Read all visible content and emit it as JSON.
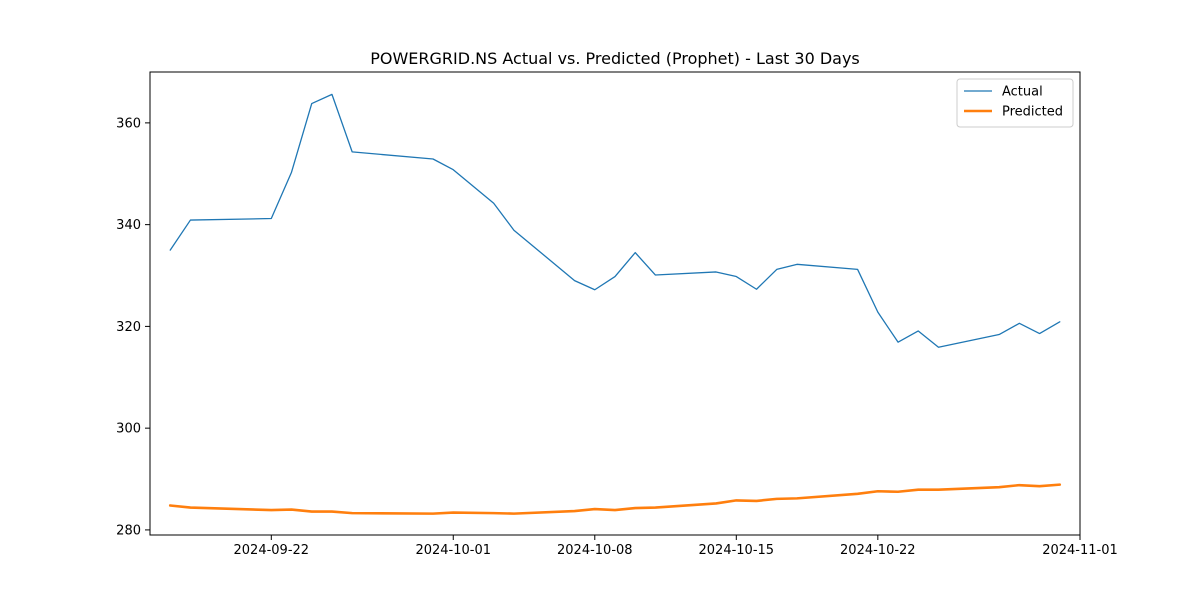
{
  "chart_data": {
    "type": "line",
    "title": "POWERGRID.NS Actual vs. Predicted (Prophet) - Last 30 Days",
    "xlabel": "",
    "ylabel": "",
    "xlim": [
      "2024-09-16",
      "2024-11-01"
    ],
    "ylim": [
      279,
      370
    ],
    "x_ticks": [
      "2024-09-22",
      "2024-10-01",
      "2024-10-08",
      "2024-10-15",
      "2024-10-22",
      "2024-11-01"
    ],
    "y_ticks": [
      280,
      300,
      320,
      340,
      360
    ],
    "grid": false,
    "legend_position": "top-right",
    "series": [
      {
        "name": "Actual",
        "color": "#1f77b4",
        "x": [
          "2024-09-17",
          "2024-09-18",
          "2024-09-22",
          "2024-09-23",
          "2024-09-24",
          "2024-09-25",
          "2024-09-26",
          "2024-09-30",
          "2024-10-01",
          "2024-10-03",
          "2024-10-04",
          "2024-10-07",
          "2024-10-08",
          "2024-10-09",
          "2024-10-10",
          "2024-10-11",
          "2024-10-14",
          "2024-10-15",
          "2024-10-16",
          "2024-10-17",
          "2024-10-18",
          "2024-10-21",
          "2024-10-22",
          "2024-10-23",
          "2024-10-24",
          "2024-10-25",
          "2024-10-28",
          "2024-10-29",
          "2024-10-30",
          "2024-10-31"
        ],
        "values": [
          335.0,
          340.9,
          341.2,
          350.3,
          363.8,
          365.6,
          354.3,
          352.9,
          350.8,
          344.2,
          338.9,
          329.0,
          327.2,
          329.8,
          334.5,
          330.1,
          330.7,
          329.8,
          327.3,
          331.2,
          332.2,
          331.2,
          322.8,
          316.9,
          319.1,
          315.9,
          318.4,
          320.6,
          318.6,
          320.9
        ]
      },
      {
        "name": "Predicted",
        "color": "#ff7f0e",
        "x": [
          "2024-09-17",
          "2024-09-18",
          "2024-09-22",
          "2024-09-23",
          "2024-09-24",
          "2024-09-25",
          "2024-09-26",
          "2024-09-30",
          "2024-10-01",
          "2024-10-03",
          "2024-10-04",
          "2024-10-07",
          "2024-10-08",
          "2024-10-09",
          "2024-10-10",
          "2024-10-11",
          "2024-10-14",
          "2024-10-15",
          "2024-10-16",
          "2024-10-17",
          "2024-10-18",
          "2024-10-21",
          "2024-10-22",
          "2024-10-23",
          "2024-10-24",
          "2024-10-25",
          "2024-10-28",
          "2024-10-29",
          "2024-10-30",
          "2024-10-31"
        ],
        "values": [
          284.8,
          284.4,
          283.9,
          284.0,
          283.6,
          283.6,
          283.3,
          283.2,
          283.4,
          283.3,
          283.2,
          283.7,
          284.1,
          283.9,
          284.3,
          284.4,
          285.2,
          285.8,
          285.7,
          286.1,
          286.2,
          287.1,
          287.6,
          287.5,
          287.9,
          287.9,
          288.4,
          288.8,
          288.6,
          288.9
        ]
      }
    ]
  }
}
